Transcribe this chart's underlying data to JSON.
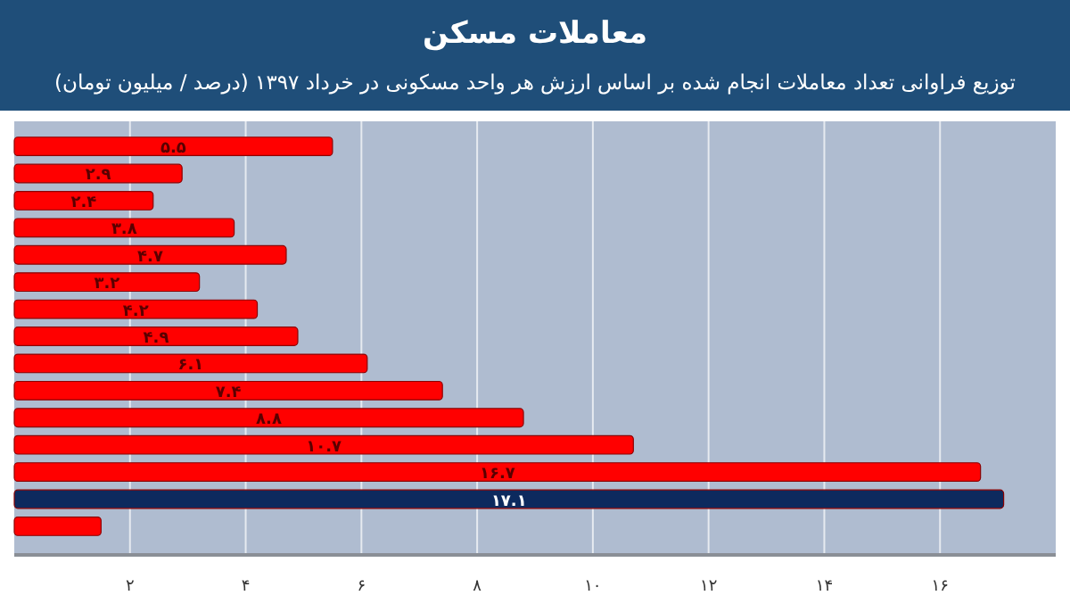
{
  "chart_data": {
    "type": "bar",
    "orientation": "horizontal",
    "title": "معاملات مسکن",
    "subtitle": "توزیع فراوانی تعداد معاملات انجام شده بر اساس ارزش هر واحد مسکونی در خرداد ۱۳۹۷ (درصد / میلیون تومان)",
    "categories": [
      null,
      null,
      null,
      null,
      null,
      null,
      null,
      null,
      null,
      null,
      null,
      null,
      null,
      null,
      null
    ],
    "values": [
      5.5,
      2.9,
      2.4,
      3.8,
      4.7,
      3.2,
      4.2,
      4.9,
      6.1,
      7.4,
      8.8,
      10.7,
      16.7,
      17.1,
      1.5
    ],
    "colors": [
      "#ff0000",
      "#ff0000",
      "#ff0000",
      "#ff0000",
      "#ff0000",
      "#ff0000",
      "#ff0000",
      "#ff0000",
      "#ff0000",
      "#ff0000",
      "#ff0000",
      "#ff0000",
      "#ff0000",
      "#0d2a5e",
      "#ff0000"
    ],
    "value_labels": [
      "۵.۵",
      "۲.۹",
      "۲.۴",
      "۳.۸",
      "۴.۷",
      "۳.۲",
      "۴.۲",
      "۴.۹",
      "۶.۱",
      "۷.۴",
      "۸.۸",
      "۱۰.۷",
      "۱۶.۷",
      "۱۷.۱",
      null
    ],
    "xlim": [
      0,
      18
    ],
    "xticks": [
      {
        "value": 2,
        "label": "۲"
      },
      {
        "value": 4,
        "label": "۴"
      },
      {
        "value": 6,
        "label": "۶"
      },
      {
        "value": 8,
        "label": "۸"
      },
      {
        "value": 10,
        "label": "۱۰"
      },
      {
        "value": 12,
        "label": "۱۲"
      },
      {
        "value": 14,
        "label": "۱۴"
      },
      {
        "value": 16,
        "label": "۱۶"
      }
    ],
    "grid": "x"
  }
}
